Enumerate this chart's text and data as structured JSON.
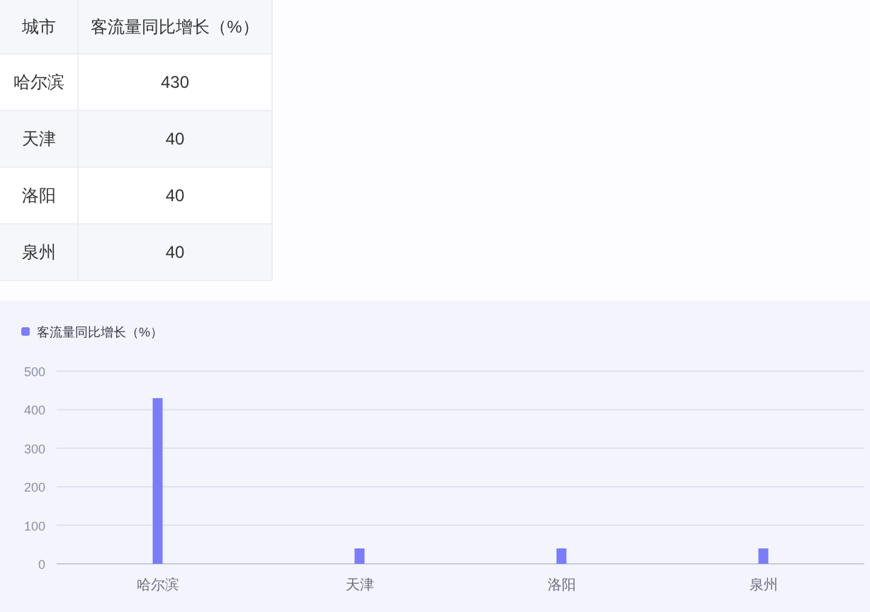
{
  "chart_data": [
    {
      "type": "other",
      "categories": [
        "哈尔滨",
        "天津",
        "洛阳",
        "泉州"
      ],
      "series": [
        {
          "name": "客流量同比增长（%）",
          "values": [
            430,
            40,
            40,
            40
          ]
        }
      ],
      "data_labels": true,
      "annotations": [
        "城市"
      ]
    },
    {
      "type": "bar",
      "categories": [
        "哈尔滨",
        "天津",
        "洛阳",
        "泉州"
      ],
      "series": [
        {
          "name": "客流量同比增长（%）",
          "color": "#7b7cf7",
          "values": [
            430,
            40,
            40,
            40
          ]
        }
      ],
      "ylim": [
        0,
        500
      ],
      "yticks": [
        0,
        100,
        200,
        300,
        400,
        500
      ],
      "grid": "y",
      "legend": "top left"
    }
  ]
}
